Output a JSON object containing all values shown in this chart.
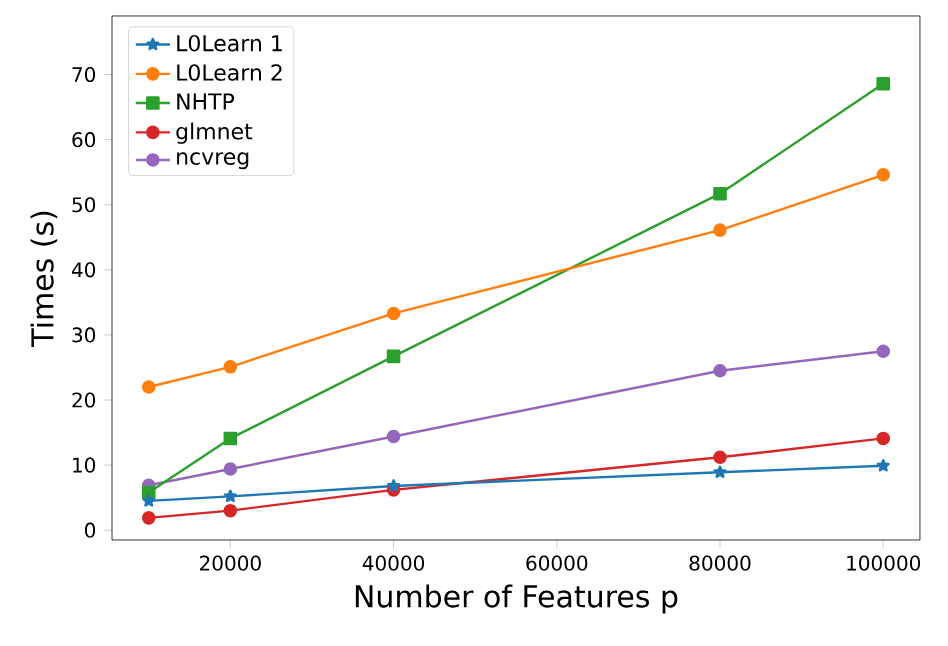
{
  "chart_data": {
    "type": "line",
    "xlabel": "Number of Features p",
    "ylabel": "Times (s)",
    "x": [
      10000,
      20000,
      40000,
      80000,
      100000
    ],
    "xlim": [
      5500,
      104500
    ],
    "ylim": [
      -1.5,
      79
    ],
    "xticks": [
      20000,
      40000,
      60000,
      80000,
      100000
    ],
    "yticks": [
      0,
      10,
      20,
      30,
      40,
      50,
      60,
      70
    ],
    "legend": "top left",
    "grid": false,
    "series": [
      {
        "name": "L0Learn 1",
        "color": "#1f77b4",
        "marker": "star",
        "values": [
          4.5,
          5.2,
          6.8,
          8.9,
          9.9
        ]
      },
      {
        "name": "L0Learn 2",
        "color": "#ff7f0e",
        "marker": "circle",
        "values": [
          22.0,
          25.1,
          33.3,
          46.1,
          54.6
        ]
      },
      {
        "name": "NHTP",
        "color": "#2ca02c",
        "marker": "square",
        "values": [
          5.8,
          14.1,
          26.7,
          51.7,
          68.6
        ]
      },
      {
        "name": "glmnet",
        "color": "#d62728",
        "marker": "circle",
        "values": [
          1.9,
          3.0,
          6.2,
          11.2,
          14.1
        ]
      },
      {
        "name": "ncvreg",
        "color": "#9467bd",
        "marker": "circle",
        "values": [
          6.9,
          9.4,
          14.4,
          24.5,
          27.5
        ]
      }
    ]
  }
}
